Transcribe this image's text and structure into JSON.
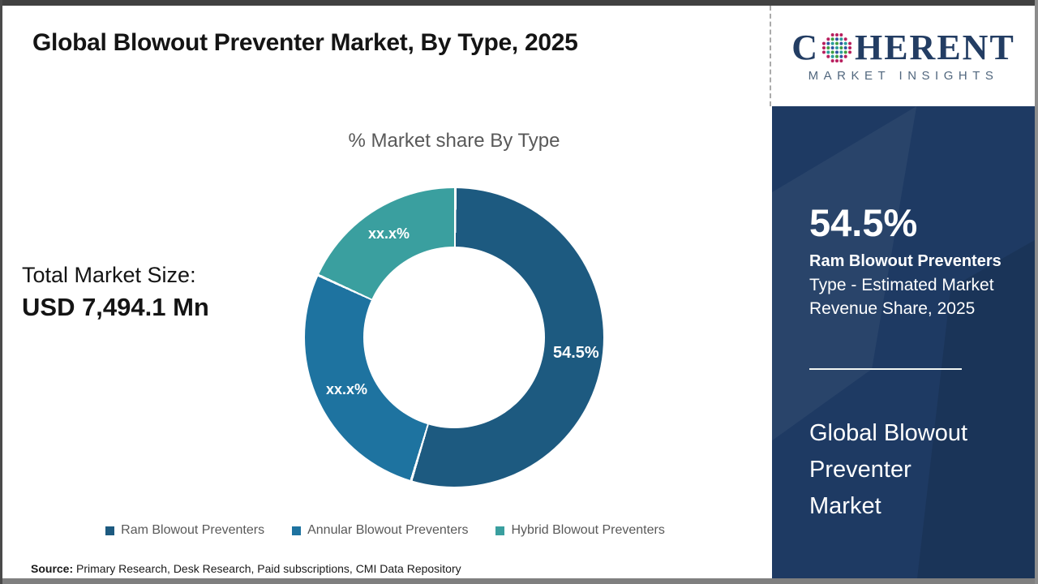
{
  "header": {
    "title": "Global Blowout Preventer Market, By Type, 2025"
  },
  "logo": {
    "word_start": "C",
    "word_end": "HERENT",
    "subtitle": "MARKET INSIGHTS",
    "globe_colors": {
      "rim": "#b81f5e",
      "green": "#3f9e41",
      "teal": "#2c9d9d",
      "blue": "#2f55a0"
    }
  },
  "stats": {
    "label": "Total Market Size:",
    "value": "USD 7,494.1 Mn"
  },
  "chart_data": {
    "type": "pie",
    "subtype": "donut",
    "title": "% Market share By Type",
    "legend_position": "bottom",
    "series": [
      {
        "name": "Ram Blowout Preventers",
        "value": 54.5,
        "label": "54.5%",
        "color": "#1d5a80",
        "note": "value shown on chart"
      },
      {
        "name": "Annular Blowout Preventers",
        "value": 27.2,
        "label": "xx.x%",
        "color": "#1e73a0",
        "note": "value masked on chart, angle estimated"
      },
      {
        "name": "Hybrid Blowout Preventers",
        "value": 18.3,
        "label": "xx.x%",
        "color": "#3a9f9f",
        "note": "value masked on chart, angle estimated"
      }
    ]
  },
  "legend": [
    {
      "label": "Ram Blowout Preventers"
    },
    {
      "label": "Annular Blowout Preventers"
    },
    {
      "label": "Hybrid Blowout Preventers"
    }
  ],
  "sidebar": {
    "pct": "54.5%",
    "pct_name": "Ram Blowout Preventers",
    "pct_desc_line1": "Type - Estimated Market",
    "pct_desc_line2": "Revenue Share, 2025",
    "market_line1": "Global Blowout",
    "market_line2": "Preventer",
    "market_line3": "Market",
    "bg_color": "#1e3a63"
  },
  "source": {
    "label": "Source:",
    "text": " Primary Research, Desk Research, Paid subscriptions, CMI Data Repository"
  }
}
